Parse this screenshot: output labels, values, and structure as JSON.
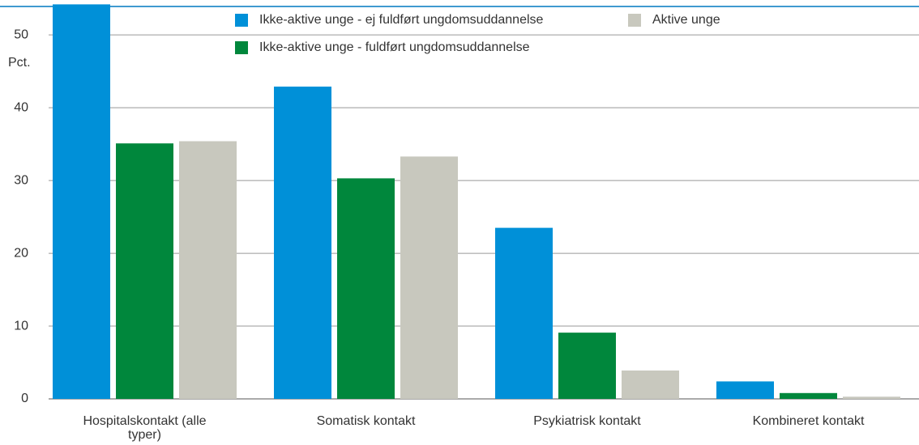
{
  "chart_data": {
    "type": "bar",
    "y_label": "Pct.",
    "categories": [
      "Hospitalskontakt (alle typer)",
      "Somatisk kontakt",
      "Psykiatrisk kontakt",
      "Kombineret kontakt"
    ],
    "series": [
      {
        "name": "Ikke-aktive unge - ej fuldført ungdomsuddannelse",
        "color": "#0090d8",
        "values": [
          54.2,
          42.9,
          23.5,
          2.4
        ]
      },
      {
        "name": "Ikke-aktive unge - fuldført ungdomsuddannelse",
        "color": "#00873c",
        "values": [
          35.1,
          30.3,
          9.1,
          0.8
        ]
      },
      {
        "name": "Aktive unge",
        "color": "#c8c8be",
        "values": [
          35.4,
          33.3,
          3.9,
          0.3
        ]
      }
    ],
    "ylim": [
      0,
      54.8
    ],
    "yticks": [
      0,
      10,
      20,
      30,
      40,
      50
    ],
    "grid": true
  }
}
